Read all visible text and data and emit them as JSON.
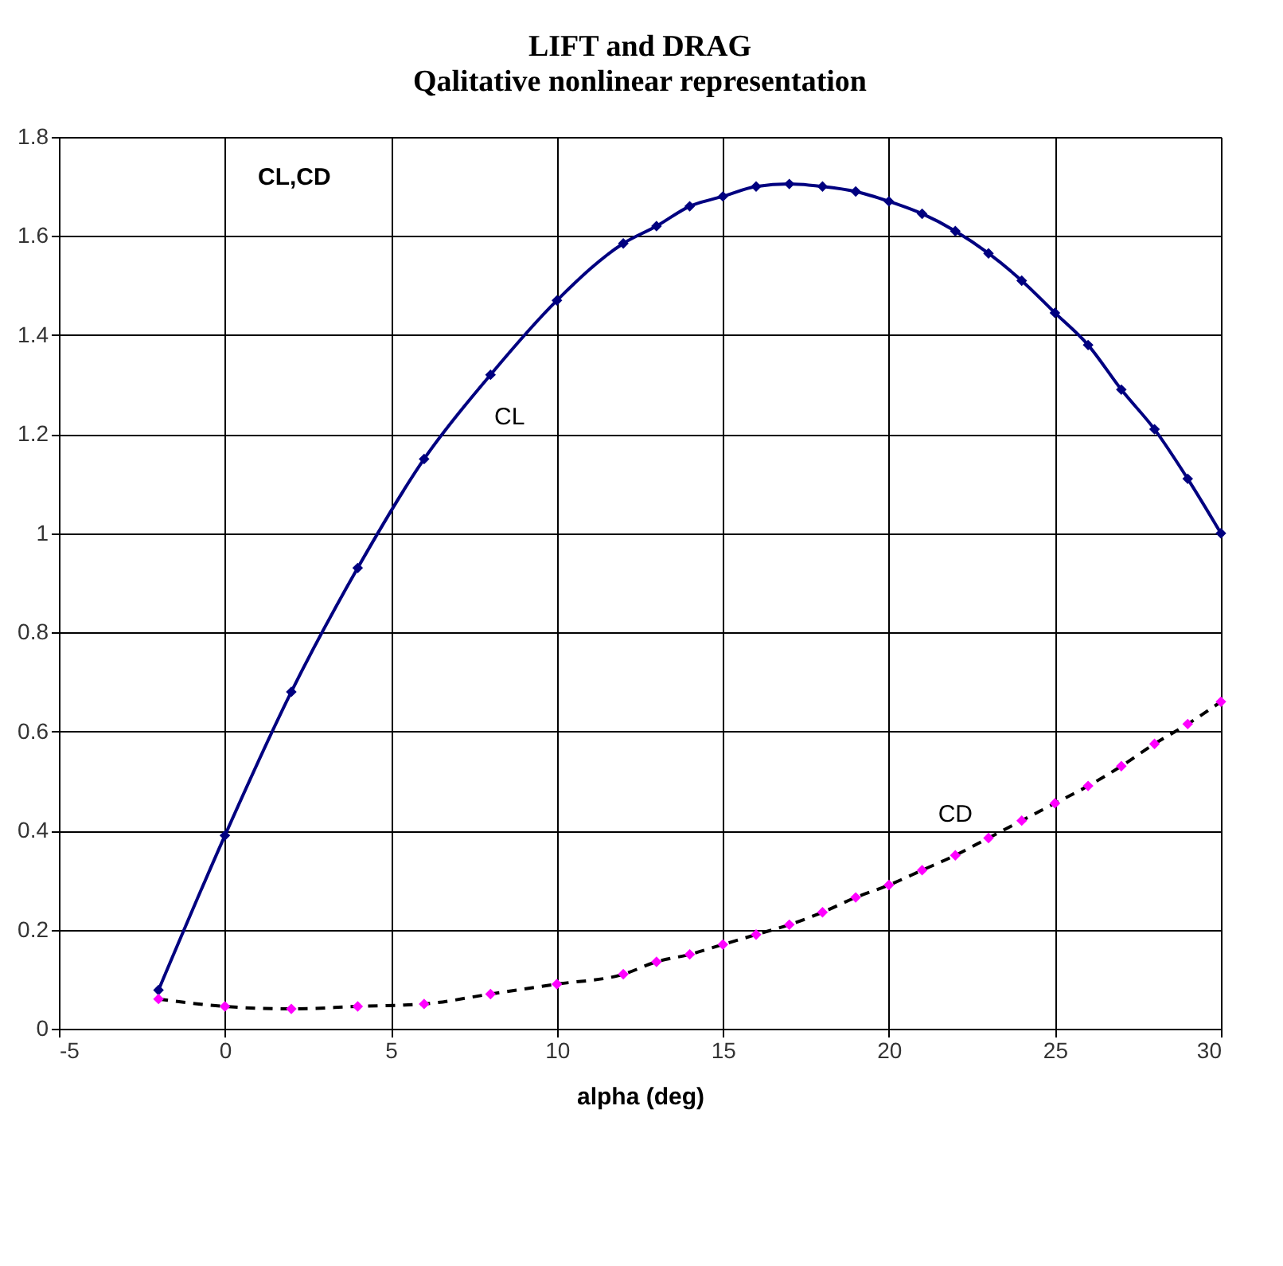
{
  "chart_data": {
    "type": "line",
    "title": "LIFT and DRAG",
    "subtitle": "Qalitative nonlinear representation",
    "xlabel": "alpha (deg)",
    "ylabel": "CL,CD",
    "x": [
      -2,
      0,
      2,
      4,
      6,
      8,
      10,
      12,
      13,
      14,
      15,
      16,
      17,
      18,
      19,
      20,
      21,
      22,
      23,
      24,
      25,
      26,
      27,
      28,
      29,
      30
    ],
    "series": [
      {
        "name": "CL",
        "color": "#000080",
        "line_style": "solid",
        "values": [
          0.078,
          0.39,
          0.68,
          0.93,
          1.15,
          1.32,
          1.47,
          1.585,
          1.62,
          1.66,
          1.68,
          1.7,
          1.705,
          1.7,
          1.69,
          1.67,
          1.645,
          1.61,
          1.565,
          1.51,
          1.445,
          1.38,
          1.29,
          1.21,
          1.11,
          1.0
        ]
      },
      {
        "name": "CD",
        "color": "#ff00ff",
        "line_style": "dashed",
        "values": [
          0.06,
          0.045,
          0.04,
          0.045,
          0.05,
          0.07,
          0.09,
          0.11,
          0.135,
          0.15,
          0.17,
          0.19,
          0.21,
          0.235,
          0.265,
          0.29,
          0.32,
          0.35,
          0.385,
          0.42,
          0.455,
          0.49,
          0.53,
          0.575,
          0.615,
          0.66
        ]
      }
    ],
    "xlim": [
      -5,
      30
    ],
    "xticks": [
      -5,
      0,
      5,
      10,
      15,
      20,
      25,
      30
    ],
    "ylim": [
      0,
      1.8
    ],
    "yticks": [
      0,
      {
        "value": 0.2,
        "label": "0.2"
      },
      {
        "value": 0.4,
        "label": "0.4"
      },
      {
        "value": 0.6,
        "label": "0.6"
      },
      {
        "value": 0.8,
        "label": "0.8"
      },
      1,
      {
        "value": 1.2,
        "label": "1.2"
      },
      {
        "value": 1.4,
        "label": "1.4"
      },
      {
        "value": 1.6,
        "label": "1.6"
      },
      {
        "value": 1.8,
        "label": "1.8"
      }
    ],
    "grid": true,
    "marker": "diamond"
  }
}
